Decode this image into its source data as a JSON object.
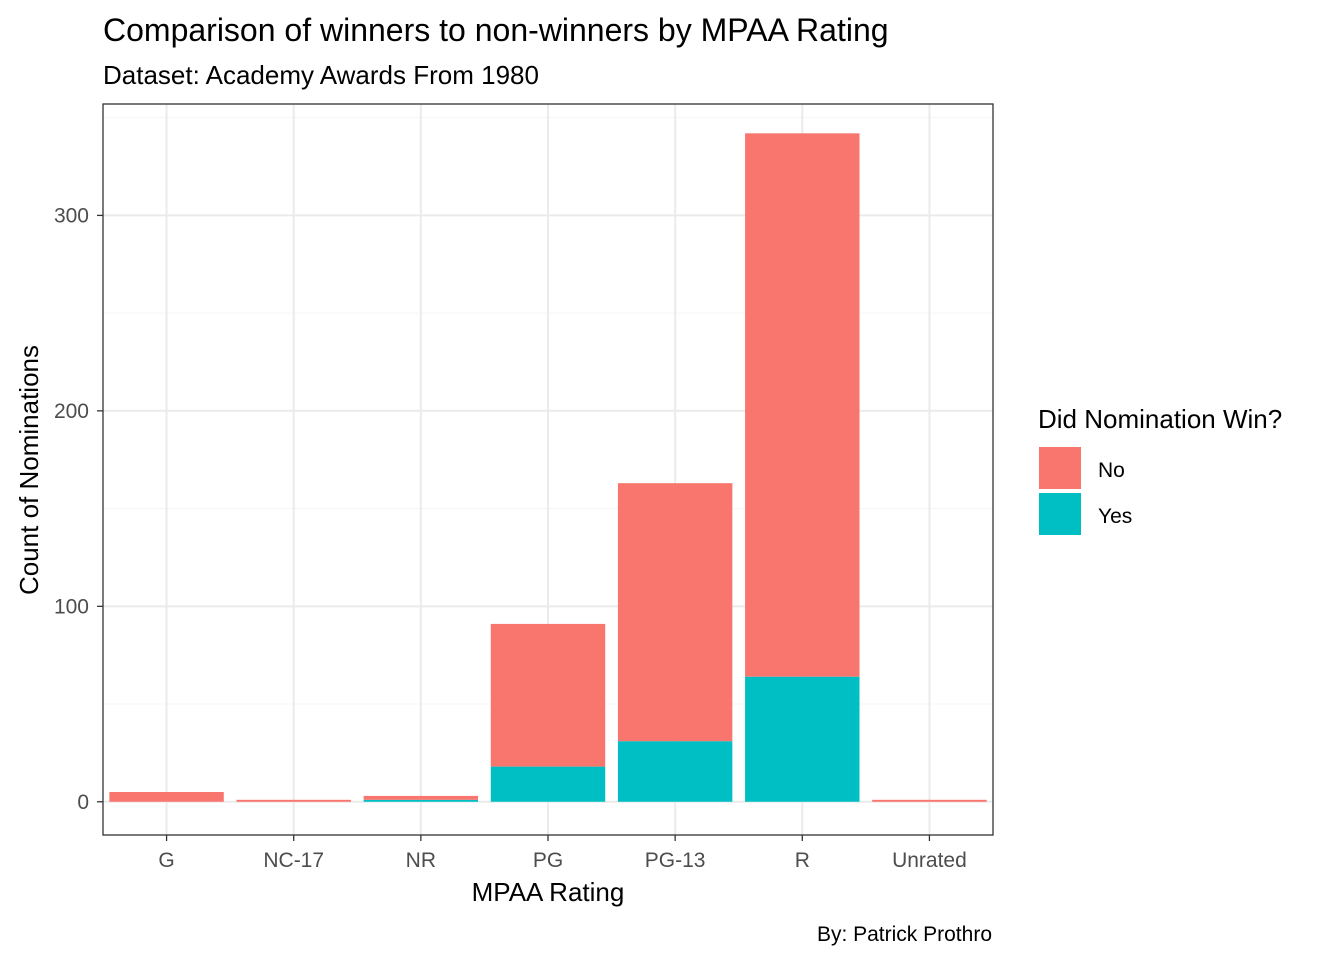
{
  "chart_data": {
    "type": "bar",
    "stacked": true,
    "title": "Comparison of winners to non-winners by MPAA Rating",
    "subtitle": "Dataset: Academy Awards From 1980",
    "caption": "By: Patrick Prothro",
    "xlabel": "MPAA Rating",
    "ylabel": "Count of Nominations",
    "categories": [
      "G",
      "NC-17",
      "NR",
      "PG",
      "PG-13",
      "R",
      "Unrated"
    ],
    "series": [
      {
        "name": "No",
        "color": "#F8766D",
        "values": [
          5,
          1,
          2,
          73,
          132,
          278,
          1
        ]
      },
      {
        "name": "Yes",
        "color": "#00BFC4",
        "values": [
          0,
          0,
          1,
          18,
          31,
          64,
          0
        ]
      }
    ],
    "ylim": [
      -17,
      357
    ],
    "yticks": [
      0,
      100,
      200,
      300
    ],
    "ytick_labels": [
      "0",
      "100",
      "200",
      "300"
    ],
    "grid": true,
    "legend": {
      "title": "Did Nomination Win?",
      "position": "right",
      "entries": [
        "No",
        "Yes"
      ]
    },
    "colors": {
      "panel_border": "#333333",
      "grid_major": "#EBEBEB",
      "grid_minor": "#F5F5F5",
      "tick_text": "#4D4D4D"
    }
  }
}
